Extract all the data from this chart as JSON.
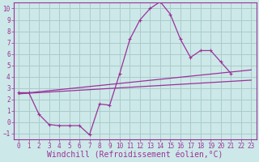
{
  "xlabel": "Windchill (Refroidissement éolien,°C)",
  "bg_color": "#cde8e8",
  "grid_color": "#aacccc",
  "line_color": "#993399",
  "xlim": [
    -0.5,
    23.5
  ],
  "ylim": [
    -1.5,
    10.5
  ],
  "xticks": [
    0,
    1,
    2,
    3,
    4,
    5,
    6,
    7,
    8,
    9,
    10,
    11,
    12,
    13,
    14,
    15,
    16,
    17,
    18,
    19,
    20,
    21,
    22,
    23
  ],
  "yticks": [
    -1,
    0,
    1,
    2,
    3,
    4,
    5,
    6,
    7,
    8,
    9,
    10
  ],
  "curve1_x": [
    0,
    1,
    2,
    3,
    4,
    5,
    6,
    7,
    8,
    9,
    10,
    11,
    12,
    13,
    14,
    15,
    16,
    17,
    18,
    19,
    20,
    21
  ],
  "curve1_y": [
    2.6,
    2.6,
    0.7,
    -0.2,
    -0.3,
    -0.3,
    -0.3,
    -1.1,
    1.6,
    1.5,
    4.3,
    7.3,
    9.0,
    10.0,
    10.6,
    9.5,
    7.3,
    5.7,
    6.3,
    6.3,
    5.3,
    4.3
  ],
  "line1_x": [
    0,
    23
  ],
  "line1_y": [
    2.5,
    4.6
  ],
  "line2_x": [
    0,
    23
  ],
  "line2_y": [
    2.5,
    3.7
  ],
  "font_family": "monospace",
  "tick_fontsize": 5.5,
  "xlabel_fontsize": 7.0
}
